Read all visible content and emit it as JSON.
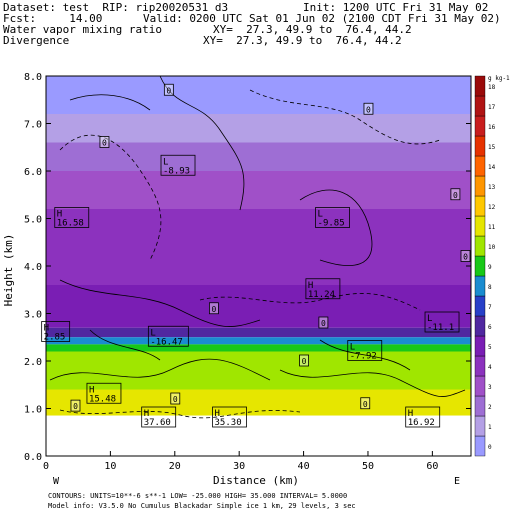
{
  "header": {
    "dataset_line": "Dataset: test  RIP: rip20020531 d3",
    "init_line": "Init: 1200 UTC Fri 31 May 02",
    "fcst_line": "Fcst:     14.00",
    "valid_line": "Valid: 0200 UTC Sat 01 Jun 02 (2100 CDT Fri 31 May 02)",
    "field1": "Water vapor mixing ratio",
    "field2": "Divergence",
    "xy1": "XY=  27.3, 49.9 to  76.4, 44.2",
    "xy2": "XY=  27.3, 49.9 to  76.4, 44.2"
  },
  "footer": {
    "line1": "CONTOURS:  UNITS=10**-6 s**-1   LOW= -25.000    HIGH=  35.000     INTERVAL=   5.0000",
    "line2": "Model info: V3.5.0 No Cumulus Blackadar  Simple ice    1 km,  29 levels,    3 sec",
    "west": "W",
    "east": "E"
  },
  "chart_data": {
    "type": "heatmap",
    "xlabel": "Distance (km)",
    "ylabel": "Height (km)",
    "xlim": [
      0,
      66
    ],
    "ylim": [
      0.0,
      8.0
    ],
    "x_ticks": [
      0,
      10,
      20,
      30,
      40,
      50,
      60
    ],
    "y_ticks": [
      "0.0",
      "1.0",
      "2.0",
      "3.0",
      "4.0",
      "5.0",
      "6.0",
      "7.0",
      "8.0"
    ],
    "colorbar": {
      "unit_label": "g kg-1",
      "levels": [
        "0",
        "1",
        "2",
        "3",
        "4",
        "5",
        "6",
        "7",
        "8",
        "9",
        "10",
        "11",
        "12",
        "13",
        "14",
        "15",
        "16",
        "17",
        "18"
      ],
      "colors": [
        "#9a9aff",
        "#b4a0e6",
        "#9e6ed4",
        "#a050c8",
        "#8c32be",
        "#7a1eb4",
        "#5028a0",
        "#2840c8",
        "#1a8cd0",
        "#18c818",
        "#a0e600",
        "#e6e600",
        "#ffc800",
        "#ff9600",
        "#ff6400",
        "#e63200",
        "#c81e1e",
        "#b01414",
        "#9a0a0a"
      ]
    },
    "moisture_layers": [
      {
        "from_km": 7.2,
        "to_km": 8.0,
        "level": "0"
      },
      {
        "from_km": 6.6,
        "to_km": 7.2,
        "level": "1"
      },
      {
        "from_km": 6.0,
        "to_km": 6.6,
        "level": "2"
      },
      {
        "from_km": 5.2,
        "to_km": 6.0,
        "level": "3"
      },
      {
        "from_km": 3.6,
        "to_km": 5.2,
        "level": "4"
      },
      {
        "from_km": 2.7,
        "to_km": 3.6,
        "level": "5"
      },
      {
        "from_km": 2.5,
        "to_km": 2.7,
        "level": "6"
      },
      {
        "from_km": 2.35,
        "to_km": 2.5,
        "level": "8"
      },
      {
        "from_km": 2.2,
        "to_km": 2.35,
        "level": "9"
      },
      {
        "from_km": 1.4,
        "to_km": 2.2,
        "level": "10"
      },
      {
        "from_km": 0.85,
        "to_km": 1.4,
        "level": "11"
      }
    ],
    "extrema": [
      {
        "type": "L",
        "value": "-8.93",
        "x": 20.5,
        "y": 6.1
      },
      {
        "type": "H",
        "value": "16.58",
        "x": 4.0,
        "y": 5.0
      },
      {
        "type": "L",
        "value": "-9.85",
        "x": 44.5,
        "y": 5.0
      },
      {
        "type": "H",
        "value": "11.24",
        "x": 43.0,
        "y": 3.5
      },
      {
        "type": "L",
        "value": "-16.47",
        "x": 19.0,
        "y": 2.5
      },
      {
        "type": "L",
        "value": "-11.1",
        "x": 61.5,
        "y": 2.8
      },
      {
        "type": "L",
        "value": "-7.92",
        "x": 49.5,
        "y": 2.2
      },
      {
        "type": "H",
        "value": "15.48",
        "x": 9.0,
        "y": 1.3
      },
      {
        "type": "H",
        "value": "37.60",
        "x": 17.5,
        "y": 0.8
      },
      {
        "type": "H",
        "value": "35.30",
        "x": 28.5,
        "y": 0.8
      },
      {
        "type": "H",
        "value": "16.92",
        "x": 58.5,
        "y": 0.8
      },
      {
        "type": "H",
        "value": "2.85",
        "x": 1.5,
        "y": 2.6
      }
    ],
    "zero_labels": [
      {
        "value": "0",
        "x": 19,
        "y": 7.7
      },
      {
        "value": "0",
        "x": 9,
        "y": 6.6
      },
      {
        "value": "0",
        "x": 50,
        "y": 7.3
      },
      {
        "value": "0",
        "x": 63.5,
        "y": 5.5
      },
      {
        "value": "0",
        "x": 66,
        "y": 4.2
      },
      {
        "value": "0",
        "x": 26,
        "y": 3.1
      },
      {
        "value": "0",
        "x": 43,
        "y": 2.8
      },
      {
        "value": "0",
        "x": 40,
        "y": 2.0
      },
      {
        "value": "0",
        "x": 20,
        "y": 1.2
      },
      {
        "value": "0",
        "x": 4.5,
        "y": 1.05
      },
      {
        "value": "0",
        "x": 49.5,
        "y": 1.1
      }
    ]
  }
}
